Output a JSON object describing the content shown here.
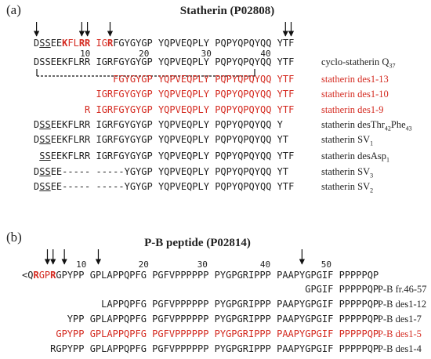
{
  "panels": [
    {
      "label": "(a)",
      "title": "Statherin (P02808)",
      "ruler": [
        "10",
        "20",
        "30",
        "40"
      ],
      "rows": [
        {
          "sequence": [
            {
              "text": "D"
            },
            {
              "text": "SS",
              "underline": true
            },
            {
              "text": "EE"
            },
            {
              "text": "K",
              "color": "#d42a20",
              "bold": true
            },
            {
              "text": "FL",
              "color": "#d42a20"
            },
            {
              "text": "RR",
              "color": "#d42a20",
              "bold": true
            },
            {
              "text": " IG",
              "color": "#d42a20"
            },
            {
              "text": "R",
              "color": "#d42a20",
              "bold": true
            },
            {
              "text": "FGYGYGP YQPVEQPLY PQPYQPQYQQ YTF"
            }
          ]
        },
        {
          "sequence": [
            {
              "text": "DSSEEKFLRR IGRFGYGYGP YQPVEQPLY PQPYQPQYQQ YTF"
            }
          ],
          "name": [
            {
              "text": "cyclo-statherin Q"
            },
            {
              "text": "37",
              "sub": true
            }
          ]
        },
        {
          "sequence": [
            {
              "text": "              FGYGYGP YQPVEQPLY PQPYQPQYQQ YTF",
              "color": "#d42a20"
            }
          ],
          "name": [
            {
              "text": "statherin des1-13",
              "color": "#d42a20"
            }
          ]
        },
        {
          "sequence": [
            {
              "text": "           IGRFGYGYGP YQPVEQPLY PQPYQPQYQQ YTF",
              "color": "#d42a20"
            }
          ],
          "name": [
            {
              "text": "statherin des1-10",
              "color": "#d42a20"
            }
          ]
        },
        {
          "sequence": [
            {
              "text": "         R IGRFGYGYGP YQPVEQPLY PQPYQPQYQQ YTF",
              "color": "#d42a20"
            }
          ],
          "name": [
            {
              "text": "statherin des1-9",
              "color": "#d42a20"
            }
          ]
        },
        {
          "sequence": [
            {
              "text": "D"
            },
            {
              "text": "SS",
              "underline": true
            },
            {
              "text": "EEKFLRR IGRFGYGYGP YQPVEQPLY PQPYQPQYQQ Y"
            }
          ],
          "name": [
            {
              "text": "statherin desThr"
            },
            {
              "text": "42",
              "sub": true
            },
            {
              "text": "Phe"
            },
            {
              "text": "43",
              "sub": true
            }
          ]
        },
        {
          "sequence": [
            {
              "text": "D"
            },
            {
              "text": "SS",
              "underline": true
            },
            {
              "text": "EEKFLRR IGRFGYGYGP YQPVEQPLY PQPYQPQYQQ YT"
            }
          ],
          "name": [
            {
              "text": "statherin SV"
            },
            {
              "text": "1",
              "sub": true
            }
          ]
        },
        {
          "sequence": [
            {
              "text": " "
            },
            {
              "text": "SS",
              "underline": true
            },
            {
              "text": "EEKFLRR IGRFGYGYGP YQPVEQPLY PQPYQPQYQQ YTF"
            }
          ],
          "name": [
            {
              "text": "statherin desAsp"
            },
            {
              "text": "1",
              "sub": true
            }
          ]
        },
        {
          "sequence": [
            {
              "text": "D"
            },
            {
              "text": "SS",
              "underline": true
            },
            {
              "text": "EE----- -----YGYGP YQPVEQPLY PQPYQPQYQQ YT"
            }
          ],
          "name": [
            {
              "text": "statherin SV"
            },
            {
              "text": "3",
              "sub": true
            }
          ]
        },
        {
          "sequence": [
            {
              "text": "D"
            },
            {
              "text": "SS",
              "underline": true
            },
            {
              "text": "EE----- -----YGYGP YQPVEQPLY PQPYQPQYQQ YTF"
            }
          ],
          "name": [
            {
              "text": "statherin SV"
            },
            {
              "text": "2",
              "sub": true
            }
          ]
        }
      ]
    },
    {
      "label": "(b)",
      "title": "P-B peptide (P02814)",
      "ruler": [
        "10",
        "20",
        "30",
        "40",
        "50"
      ],
      "rows": [
        {
          "sequence": [
            {
              "text": "<Q"
            },
            {
              "text": "R",
              "color": "#d42a20",
              "bold": true
            },
            {
              "text": "GP",
              "color": "#d42a20"
            },
            {
              "text": "R",
              "color": "#d42a20",
              "bold": true
            },
            {
              "text": "GPYPP GPLAPPQPFG PGFVPPPPPP PYGPGRIPPP PAAPYGPGIF PPPPPQP"
            }
          ]
        },
        {
          "sequence": [
            {
              "text": "                                                  GPGIF PPPPPQP"
            }
          ],
          "name": [
            {
              "text": "P-B fr.46-57"
            }
          ]
        },
        {
          "sequence": [
            {
              "text": "              LAPPQPFG PGFVPPPPPP PYGPGRIPPP PAAPYGPGIF PPPPPQP"
            }
          ],
          "name": [
            {
              "text": "P-B des1-12"
            }
          ]
        },
        {
          "sequence": [
            {
              "text": "        YPP GPLAPPQPFG PGFVPPPPPP PYGPGRIPPP PAAPYGPGIF PPPPPQP"
            }
          ],
          "name": [
            {
              "text": "P-B des1-7"
            }
          ]
        },
        {
          "sequence": [
            {
              "text": "      GPYPP GPLAPPQPFG PGFVPPPPPP PYGPGRIPPP PAAPYGPGIF PPPPPQP",
              "color": "#d42a20"
            }
          ],
          "name": [
            {
              "text": "P-B des1-5",
              "color": "#d42a20"
            }
          ]
        },
        {
          "sequence": [
            {
              "text": "     RGPYPP GPLAPPQPFG PGFVPPPPPP PYGPGRIPPP PAAPYGPGIF PPPPPQP"
            }
          ],
          "name": [
            {
              "text": "P-B des1-4"
            }
          ]
        }
      ]
    }
  ]
}
